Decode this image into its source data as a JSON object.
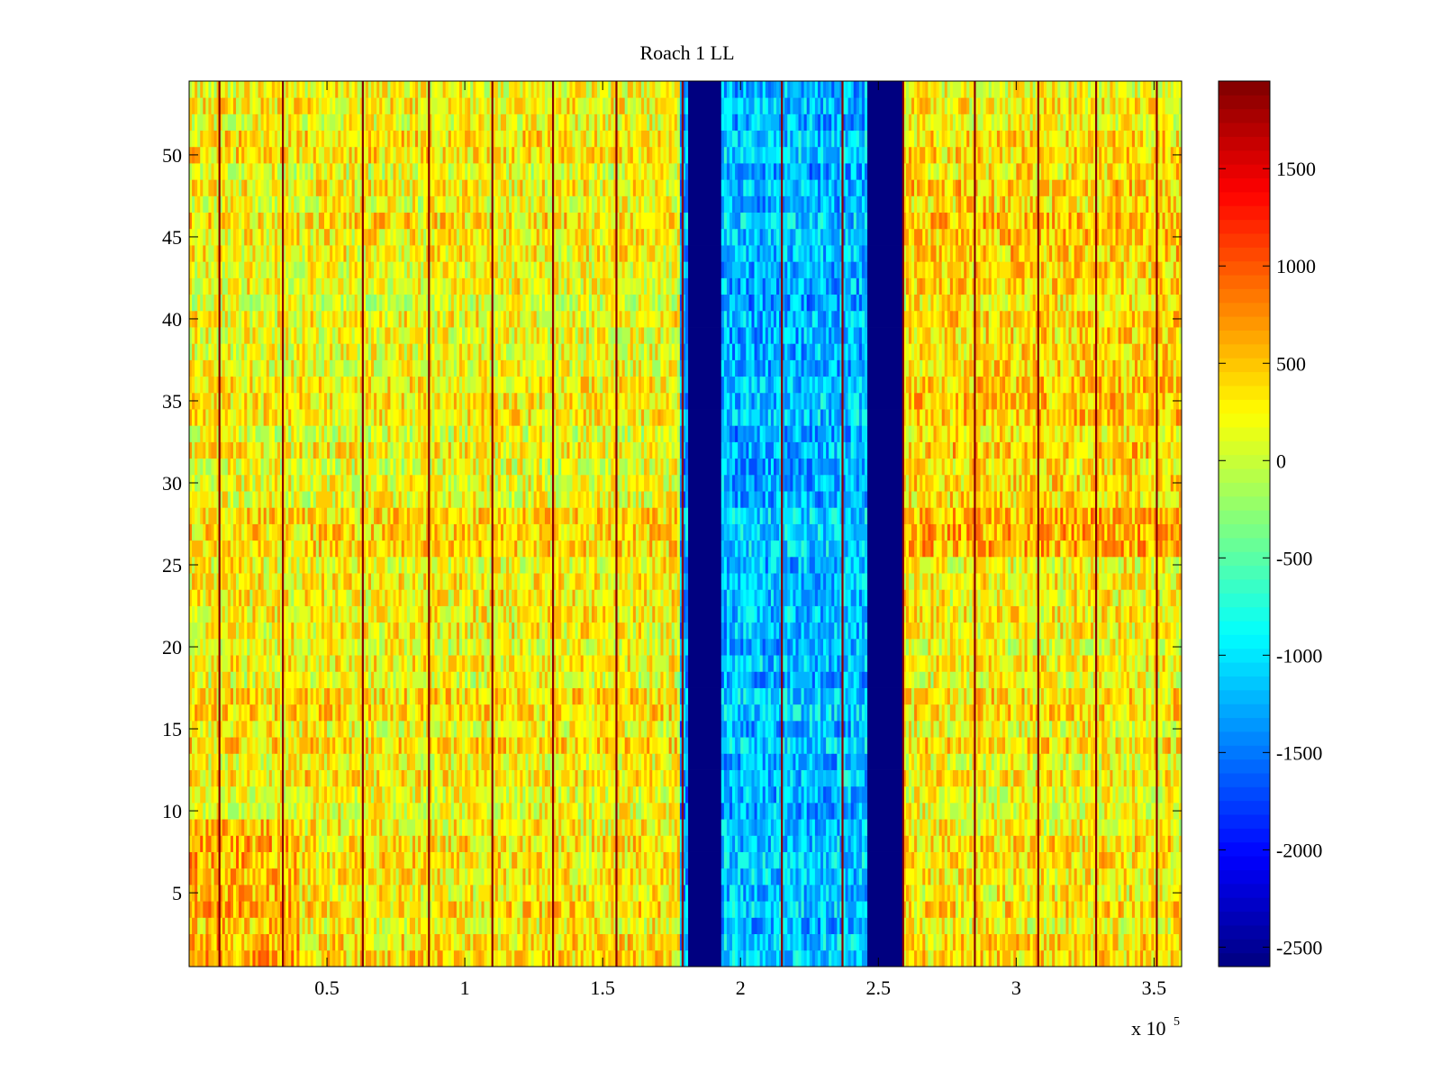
{
  "chart_data": {
    "type": "heatmap",
    "title": "Roach 1 LL",
    "xlabel": "",
    "ylabel": "",
    "x_exponent_label": "x 10",
    "x_exponent": "5",
    "xlim": [
      0,
      3.6
    ],
    "ylim": [
      0.5,
      54.5
    ],
    "x_ticks": [
      0.5,
      1,
      1.5,
      2,
      2.5,
      3,
      3.5
    ],
    "x_tick_labels": [
      "0.5",
      "1",
      "1.5",
      "2",
      "2.5",
      "3",
      "3.5"
    ],
    "y_ticks": [
      5,
      10,
      15,
      20,
      25,
      30,
      35,
      40,
      45,
      50
    ],
    "y_tick_labels": [
      "5",
      "10",
      "15",
      "20",
      "25",
      "30",
      "35",
      "40",
      "45",
      "50"
    ],
    "colorbar": {
      "colormap": "jet",
      "range": [
        -2600,
        1950
      ],
      "ticks": [
        -2500,
        -2000,
        -1500,
        -1000,
        -500,
        0,
        500,
        1000,
        1500
      ],
      "tick_labels": [
        "-2500",
        "-2000",
        "-1500",
        "-1000",
        "-500",
        "0",
        "500",
        "1000",
        "1500"
      ]
    },
    "rows": 54,
    "columns_per_row": 360,
    "value_regions": [
      {
        "x_range": [
          0,
          1.78
        ],
        "mean_value": 250,
        "description": "yellow-orange"
      },
      {
        "x_range": [
          1.78,
          1.81
        ],
        "mean_value": -1300
      },
      {
        "x_range": [
          1.81,
          1.93
        ],
        "mean_value": -2600,
        "description": "dark blue band"
      },
      {
        "x_range": [
          1.93,
          2.46
        ],
        "mean_value": -1200
      },
      {
        "x_range": [
          2.46,
          2.59
        ],
        "mean_value": -2600,
        "description": "dark blue band"
      },
      {
        "x_range": [
          2.59,
          3.6
        ],
        "mean_value": 250
      }
    ],
    "spike_columns": [
      0.11,
      0.34,
      0.63,
      0.87,
      1.1,
      1.32,
      1.55,
      1.79,
      2.15,
      2.37,
      2.59,
      2.85,
      3.08,
      3.29,
      3.51
    ]
  }
}
